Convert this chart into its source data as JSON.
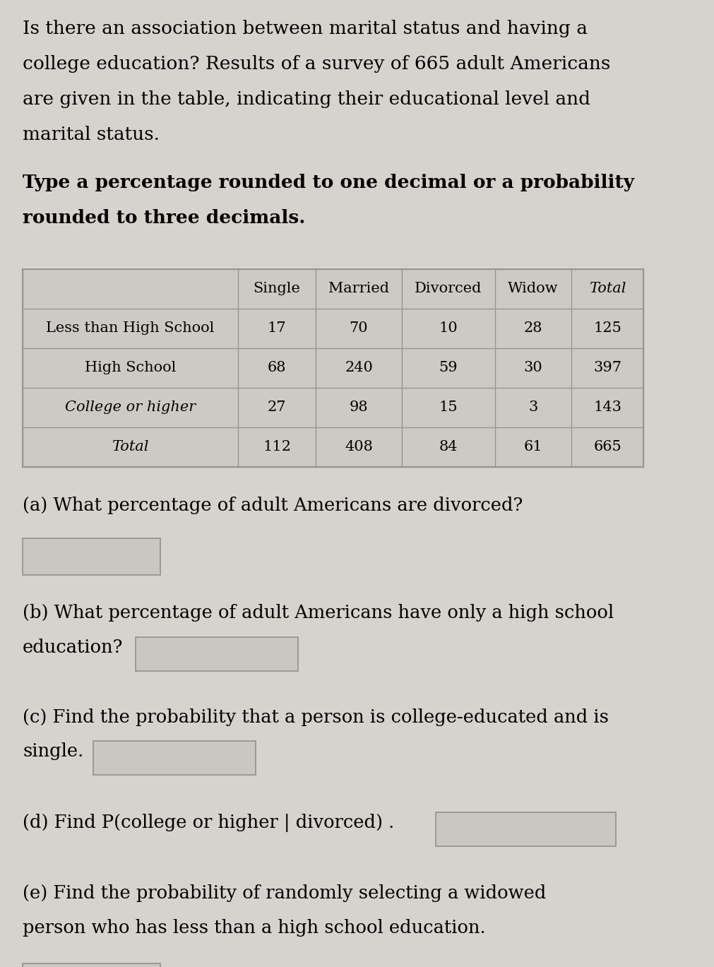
{
  "title_lines": [
    "Is there an association between marital status and having a",
    "college education? Results of a survey of 665 adult Americans",
    "are given in the table, indicating their educational level and",
    "marital status."
  ],
  "subtitle_lines": [
    "Type a percentage rounded to one decimal or a probability",
    "rounded to three decimals."
  ],
  "table_headers": [
    "",
    "Single",
    "Married",
    "Divorced",
    "Widow",
    "Total"
  ],
  "table_rows": [
    [
      "Less than High School",
      "17",
      "70",
      "10",
      "28",
      "125"
    ],
    [
      "High School",
      "68",
      "240",
      "59",
      "30",
      "397"
    ],
    [
      "College or higher",
      "27",
      "98",
      "15",
      "3",
      "143"
    ],
    [
      "Total",
      "112",
      "408",
      "84",
      "61",
      "665"
    ]
  ],
  "header_italic": [
    false,
    false,
    false,
    false,
    false,
    true
  ],
  "row_italic": [
    false,
    false,
    true,
    true
  ],
  "q_a_line": "(a) What percentage of adult Americans are divorced?",
  "q_b_lines": [
    "(b) What percentage of adult Americans have only a high school",
    "education?"
  ],
  "q_c_lines": [
    "(c) Find the probability that a person is college-educated and is",
    "single."
  ],
  "q_d_line": "(d) Find P(college or higher | divorced) .",
  "q_e_lines": [
    "(e) Find the probability of randomly selecting a widowed",
    "person who has less than a high school education."
  ],
  "bg_color": "#d6d2ce",
  "table_bg": "#cdc9c5",
  "input_box_color": "#cac6c2",
  "text_color": "#000000",
  "border_color": "#999590"
}
